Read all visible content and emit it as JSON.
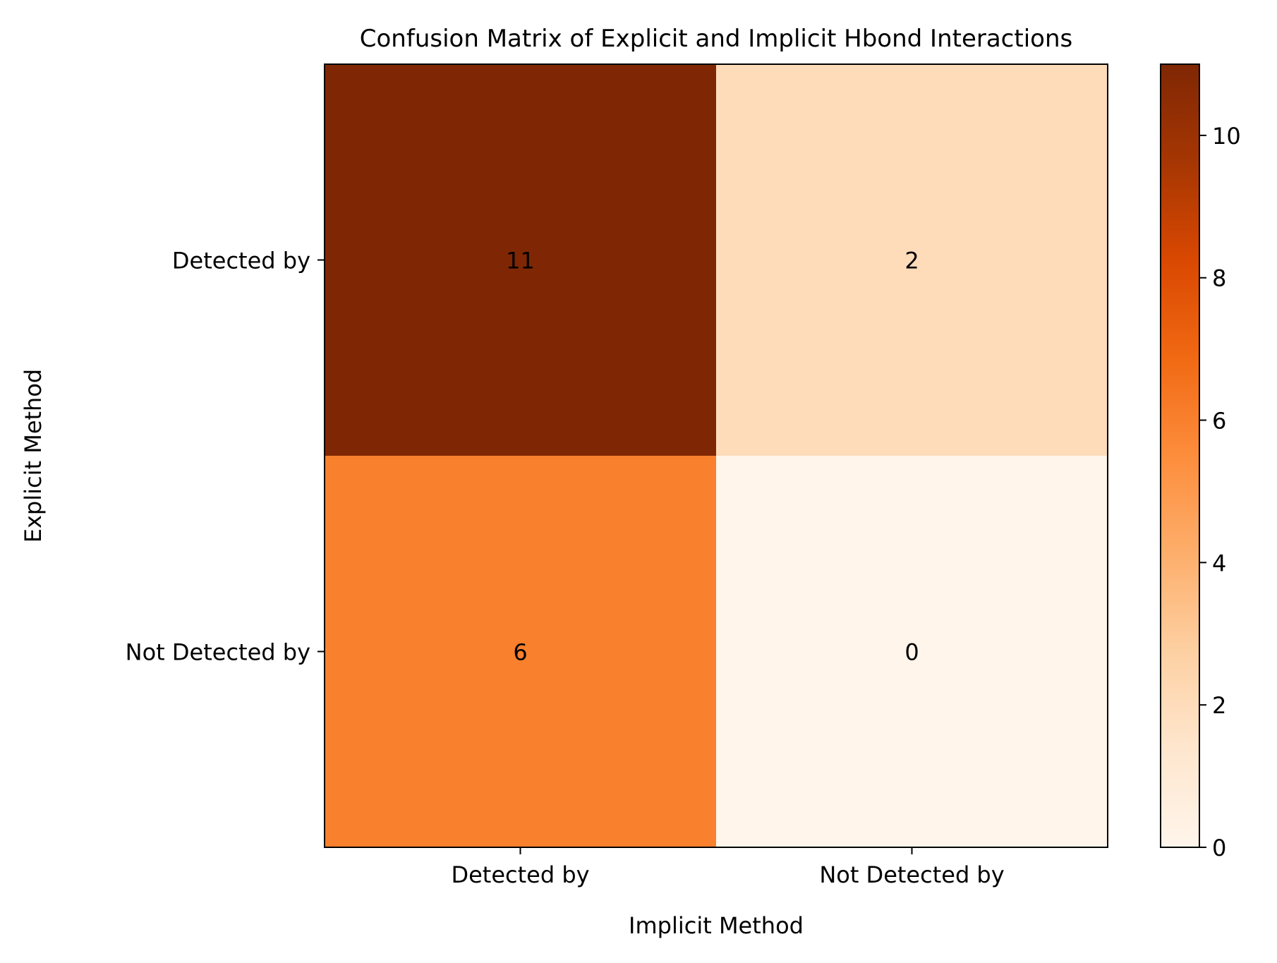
{
  "chart_data": {
    "type": "heatmap",
    "title": "Confusion Matrix of Explicit and Implicit Hbond Interactions",
    "xlabel": "Implicit Method",
    "ylabel": "Explicit Method",
    "x_categories": [
      "Detected by",
      "Not Detected by"
    ],
    "y_categories": [
      "Detected by",
      "Not Detected by"
    ],
    "values": [
      [
        11,
        2
      ],
      [
        6,
        0
      ]
    ],
    "colormap": "Oranges",
    "colorbar": {
      "range": [
        0,
        11
      ],
      "ticks": [
        0,
        2,
        4,
        6,
        8,
        10
      ],
      "tick_labels": [
        "0",
        "2",
        "4",
        "6",
        "8",
        "10"
      ]
    },
    "grid": false
  },
  "colors": {
    "cmap_stops": [
      "#fff5eb",
      "#fee6ce",
      "#fdd0a2",
      "#fdae6b",
      "#fd8d3c",
      "#f16913",
      "#d94801",
      "#a63603",
      "#7f2704"
    ],
    "text": "#000000",
    "frame": "#000000"
  }
}
